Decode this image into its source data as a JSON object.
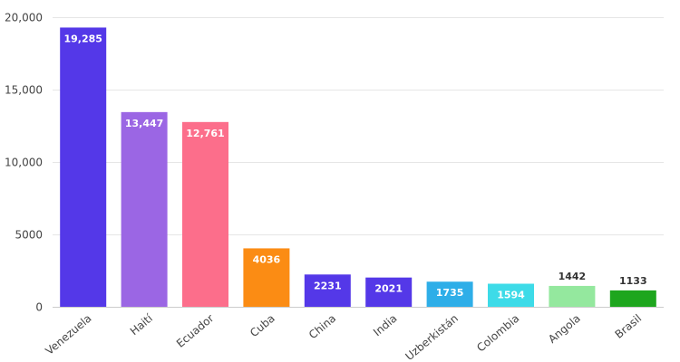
{
  "chart_data": {
    "type": "bar",
    "title": "",
    "xlabel": "",
    "ylabel": "",
    "categories": [
      "Venezuela",
      "Haití",
      "Ecuador",
      "Cuba",
      "China",
      "India",
      "Uzberkistán",
      "Colombia",
      "Angola",
      "Brasil"
    ],
    "values": [
      19285,
      13447,
      12761,
      4036,
      2231,
      2021,
      1735,
      1594,
      1442,
      1133
    ],
    "value_labels": [
      "19,285",
      "13,447",
      "12,761",
      "4036",
      "2231",
      "2021",
      "1735",
      "1594",
      "1442",
      "1133"
    ],
    "colors": [
      "#5438e8",
      "#9b66e4",
      "#fc6e8b",
      "#fb8c14",
      "#5438e8",
      "#5438e8",
      "#2eaee8",
      "#3ddbe8",
      "#94e89e",
      "#1ea61e"
    ],
    "label_colors": [
      "#ffffff",
      "#ffffff",
      "#ffffff",
      "#ffffff",
      "#ffffff",
      "#ffffff",
      "#ffffff",
      "#ffffff",
      "#333333",
      "#333333"
    ],
    "label_inside": [
      true,
      true,
      true,
      true,
      true,
      true,
      true,
      true,
      false,
      false
    ],
    "ylim": [
      0,
      20000
    ],
    "yticks": [
      0,
      5000,
      10000,
      15000,
      20000
    ],
    "ytick_labels": [
      "0",
      "5000",
      "10,000",
      "15,000",
      "20,000"
    ],
    "grid": true,
    "legend": "none"
  }
}
